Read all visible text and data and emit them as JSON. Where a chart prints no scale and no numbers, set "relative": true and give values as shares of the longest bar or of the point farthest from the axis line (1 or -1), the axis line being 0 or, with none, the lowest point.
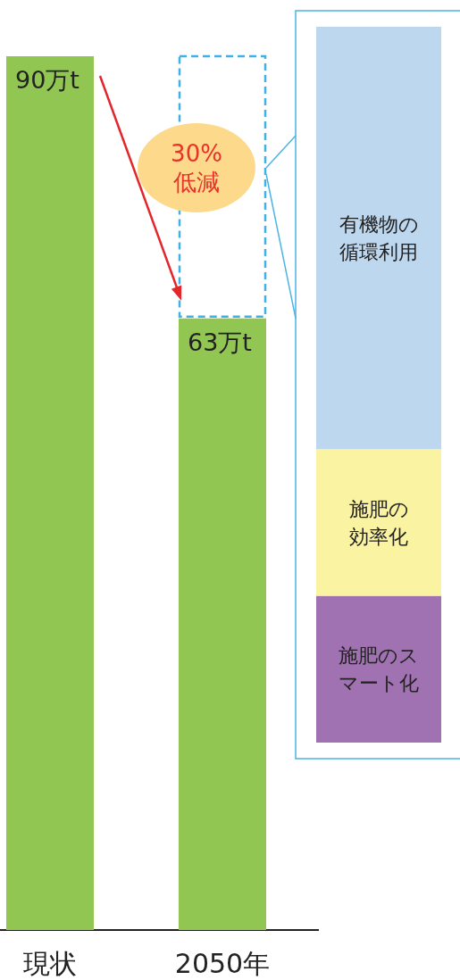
{
  "chart_data": [
    {
      "type": "bar",
      "categories": [
        "現状",
        "2050年"
      ],
      "values": [
        90,
        63
      ],
      "value_labels": [
        "90万t",
        "63万t"
      ],
      "color": "#92c653",
      "annotations": [
        "30%\n低減"
      ]
    },
    {
      "type": "bar",
      "stacked": true,
      "relative": true,
      "categories": [
        null
      ],
      "series": [
        {
          "name": "施肥のスマート化",
          "color": "#a172b1",
          "values": [
            0.205
          ]
        },
        {
          "name": "施肥の効率化",
          "color": "#faf3a2",
          "values": [
            0.205
          ]
        },
        {
          "name": "有機物の循環利用",
          "color": "#bdd7ee",
          "values": [
            0.59
          ]
        }
      ]
    }
  ]
}
